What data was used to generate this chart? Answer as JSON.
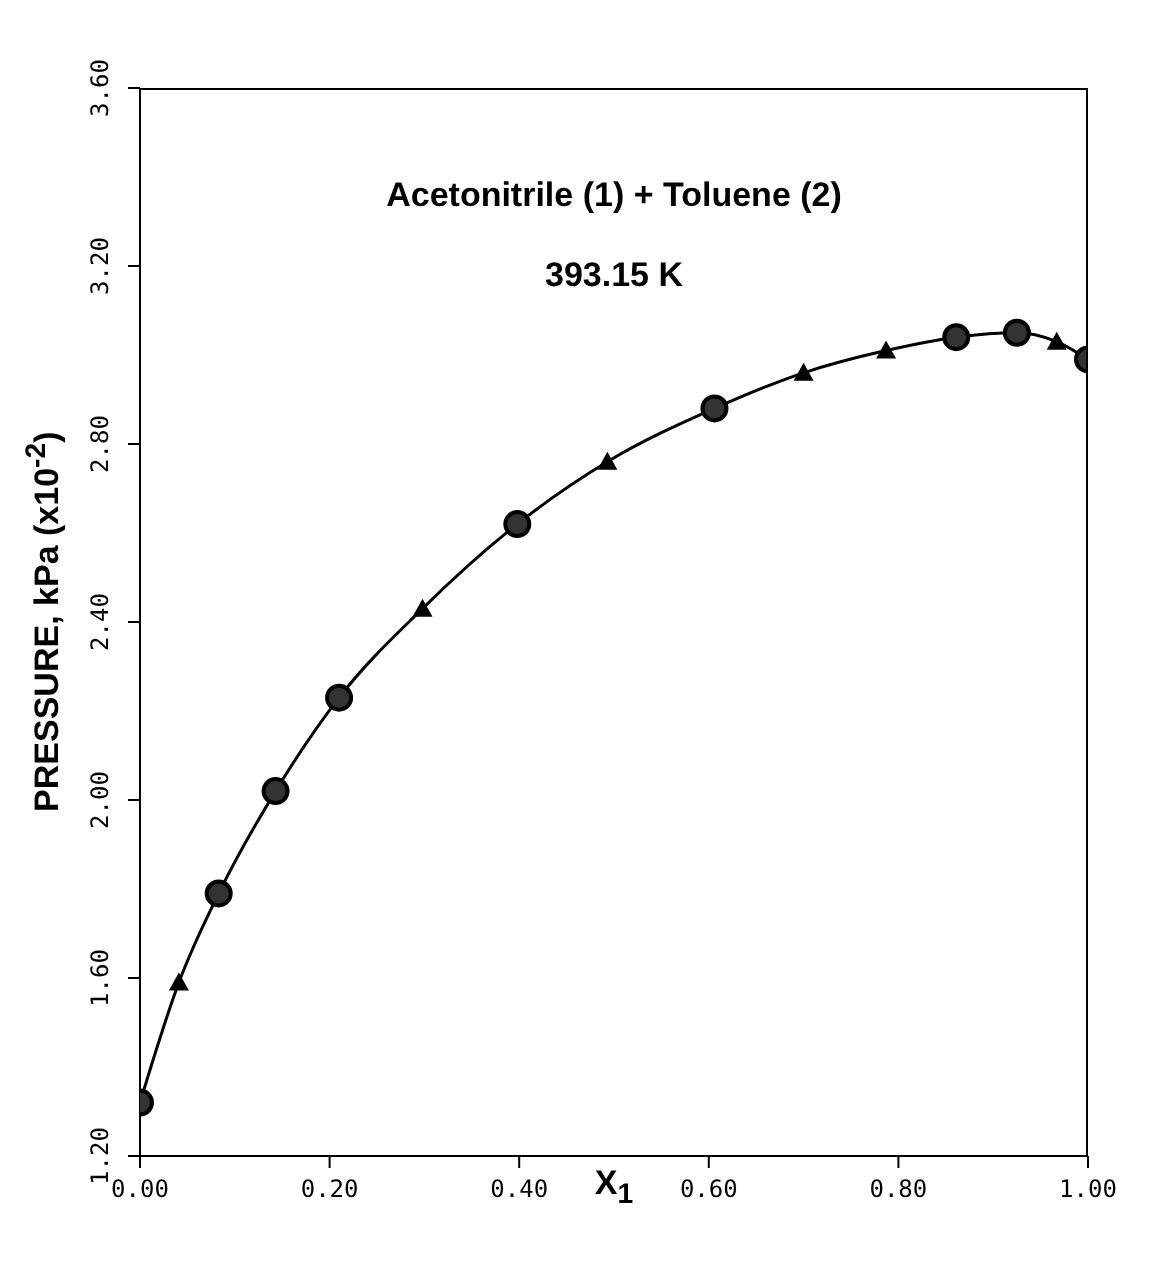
{
  "chart_data": {
    "type": "line",
    "title": "Acetonitrile (1) + Toluene (2)",
    "subtitle": "393.15 K",
    "xlabel": "X$_{1}$",
    "ylabel": "PRESSURE, kPa (x10$^{-2}$)",
    "series": [
      {
        "color": "#000000",
        "marker": "none",
        "x": [
          0,
          0.041,
          0.083,
          0.143,
          0.21,
          0.298,
          0.398,
          0.493,
          0.606,
          0.7,
          0.787,
          0.861,
          0.925,
          0.967,
          1.0
        ],
        "values": [
          1.32,
          1.59,
          1.79,
          2.02,
          2.23,
          2.43,
          2.62,
          2.76,
          2.88,
          2.96,
          3.01,
          3.04,
          3.05,
          3.03,
          2.99
        ]
      },
      {
        "type": "scatter",
        "color": "#000000",
        "marker": "circle",
        "x": [
          0,
          0.083,
          0.143,
          0.21,
          0.398,
          0.606,
          0.861,
          0.925,
          1.0
        ],
        "values": [
          1.32,
          1.79,
          2.02,
          2.23,
          2.62,
          2.88,
          3.04,
          3.05,
          2.99
        ]
      },
      {
        "type": "scatter",
        "color": "#000000",
        "marker": "triangle",
        "x": [
          0.041,
          0.298,
          0.493,
          0.7,
          0.787,
          0.967
        ],
        "values": [
          1.59,
          2.43,
          2.76,
          2.96,
          3.01,
          3.03
        ]
      }
    ],
    "xlim": [
      0,
      1
    ],
    "xticks": [
      {
        "value": 0,
        "label": "0.00"
      },
      {
        "value": 0.2,
        "label": "0.20"
      },
      {
        "value": 0.4,
        "label": "0.40"
      },
      {
        "value": 0.6,
        "label": "0.60"
      },
      {
        "value": 0.8,
        "label": "0.80"
      },
      {
        "value": 1,
        "label": "1.00"
      }
    ],
    "ylim": [
      1.2,
      3.6
    ],
    "yticks": [
      {
        "value": 1.2,
        "label": "1.20"
      },
      {
        "value": 1.6,
        "label": "1.60"
      },
      {
        "value": 2.0,
        "label": "2.00"
      },
      {
        "value": 2.4,
        "label": "2.40"
      },
      {
        "value": 2.8,
        "label": "2.80"
      },
      {
        "value": 3.2,
        "label": "3.20"
      },
      {
        "value": 3.6,
        "label": "3.60"
      }
    ],
    "grid": false
  }
}
